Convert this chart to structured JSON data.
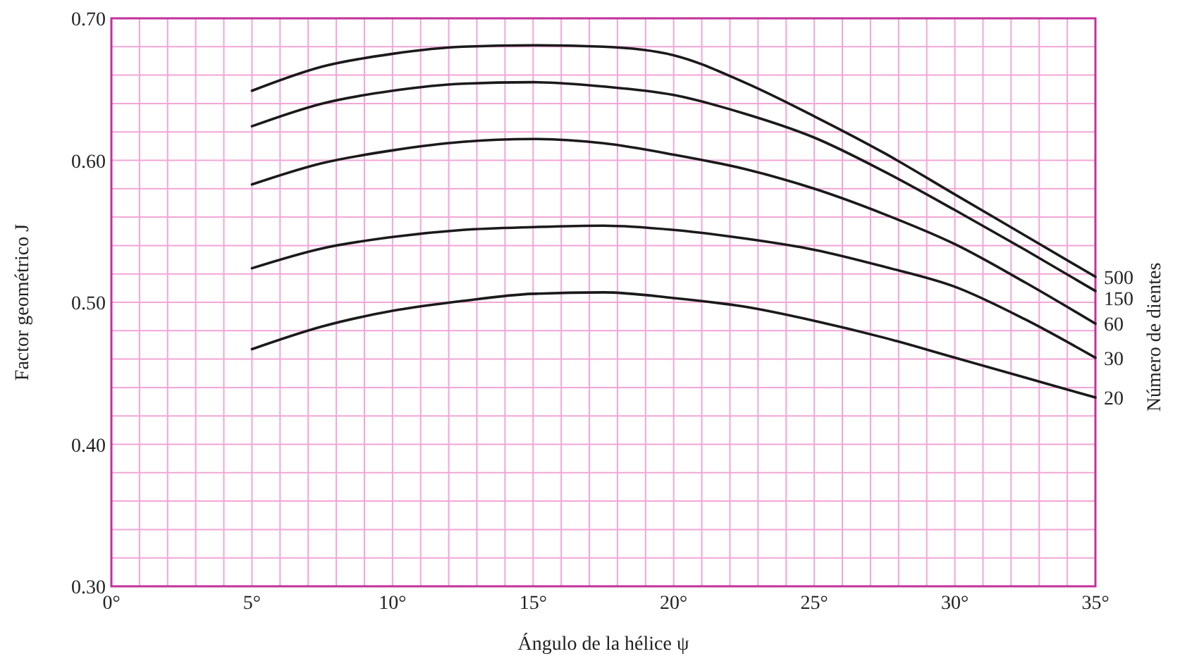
{
  "chart_data": {
    "type": "line",
    "xlabel": "Ángulo de la hélice ψ",
    "ylabel": "Factor geométrico J",
    "legend_title": "Número de dientes",
    "x": [
      5,
      7.5,
      10,
      12.5,
      15,
      17.5,
      20,
      22.5,
      25,
      27.5,
      30,
      32.5,
      35
    ],
    "series": [
      {
        "name": "500",
        "color": "#1a1a1a",
        "values": [
          0.649,
          0.666,
          0.675,
          0.68,
          0.681,
          0.68,
          0.674,
          0.655,
          0.631,
          0.605,
          0.576,
          0.547,
          0.518
        ]
      },
      {
        "name": "150",
        "color": "#1a1a1a",
        "values": [
          0.624,
          0.64,
          0.649,
          0.654,
          0.655,
          0.652,
          0.646,
          0.633,
          0.616,
          0.592,
          0.565,
          0.537,
          0.508
        ]
      },
      {
        "name": "60",
        "color": "#1a1a1a",
        "values": [
          0.583,
          0.598,
          0.607,
          0.613,
          0.615,
          0.612,
          0.604,
          0.594,
          0.58,
          0.562,
          0.541,
          0.514,
          0.485
        ]
      },
      {
        "name": "30",
        "color": "#1a1a1a",
        "values": [
          0.524,
          0.538,
          0.546,
          0.551,
          0.553,
          0.554,
          0.551,
          0.545,
          0.537,
          0.525,
          0.511,
          0.488,
          0.461
        ]
      },
      {
        "name": "20",
        "color": "#1a1a1a",
        "values": [
          0.467,
          0.483,
          0.494,
          0.501,
          0.506,
          0.507,
          0.503,
          0.497,
          0.487,
          0.475,
          0.461,
          0.447,
          0.433
        ]
      }
    ],
    "xlim": [
      0,
      35
    ],
    "ylim": [
      0.3,
      0.7
    ],
    "xticks": [
      {
        "value": 0,
        "label": "0°"
      },
      {
        "value": 1,
        "label": null
      },
      {
        "value": 2,
        "label": null
      },
      {
        "value": 3,
        "label": null
      },
      {
        "value": 4,
        "label": null
      },
      {
        "value": 5,
        "label": "5°"
      },
      {
        "value": 6,
        "label": null
      },
      {
        "value": 7,
        "label": null
      },
      {
        "value": 8,
        "label": null
      },
      {
        "value": 9,
        "label": null
      },
      {
        "value": 10,
        "label": "10°"
      },
      {
        "value": 11,
        "label": null
      },
      {
        "value": 12,
        "label": null
      },
      {
        "value": 13,
        "label": null
      },
      {
        "value": 14,
        "label": null
      },
      {
        "value": 15,
        "label": "15°"
      },
      {
        "value": 16,
        "label": null
      },
      {
        "value": 17,
        "label": null
      },
      {
        "value": 18,
        "label": null
      },
      {
        "value": 19,
        "label": null
      },
      {
        "value": 20,
        "label": "20°"
      },
      {
        "value": 21,
        "label": null
      },
      {
        "value": 22,
        "label": null
      },
      {
        "value": 23,
        "label": null
      },
      {
        "value": 24,
        "label": null
      },
      {
        "value": 25,
        "label": "25°"
      },
      {
        "value": 26,
        "label": null
      },
      {
        "value": 27,
        "label": null
      },
      {
        "value": 28,
        "label": null
      },
      {
        "value": 29,
        "label": null
      },
      {
        "value": 30,
        "label": "30°"
      },
      {
        "value": 31,
        "label": null
      },
      {
        "value": 32,
        "label": null
      },
      {
        "value": 33,
        "label": null
      },
      {
        "value": 34,
        "label": null
      },
      {
        "value": 35,
        "label": "35°"
      }
    ],
    "yticks": [
      {
        "value": 0.3,
        "label": "0.30"
      },
      {
        "value": 0.32,
        "label": null
      },
      {
        "value": 0.34,
        "label": null
      },
      {
        "value": 0.36,
        "label": null
      },
      {
        "value": 0.38,
        "label": null
      },
      {
        "value": 0.4,
        "label": "0.40"
      },
      {
        "value": 0.42,
        "label": null
      },
      {
        "value": 0.44,
        "label": null
      },
      {
        "value": 0.46,
        "label": null
      },
      {
        "value": 0.48,
        "label": null
      },
      {
        "value": 0.5,
        "label": "0.50"
      },
      {
        "value": 0.52,
        "label": null
      },
      {
        "value": 0.54,
        "label": null
      },
      {
        "value": 0.56,
        "label": null
      },
      {
        "value": 0.58,
        "label": null
      },
      {
        "value": 0.6,
        "label": "0.60"
      },
      {
        "value": 0.62,
        "label": null
      },
      {
        "value": 0.64,
        "label": null
      },
      {
        "value": 0.66,
        "label": null
      },
      {
        "value": 0.68,
        "label": null
      },
      {
        "value": 0.7,
        "label": "0.70"
      }
    ],
    "grid": true,
    "legend": "right",
    "marker": "none",
    "line_style": "solid"
  }
}
